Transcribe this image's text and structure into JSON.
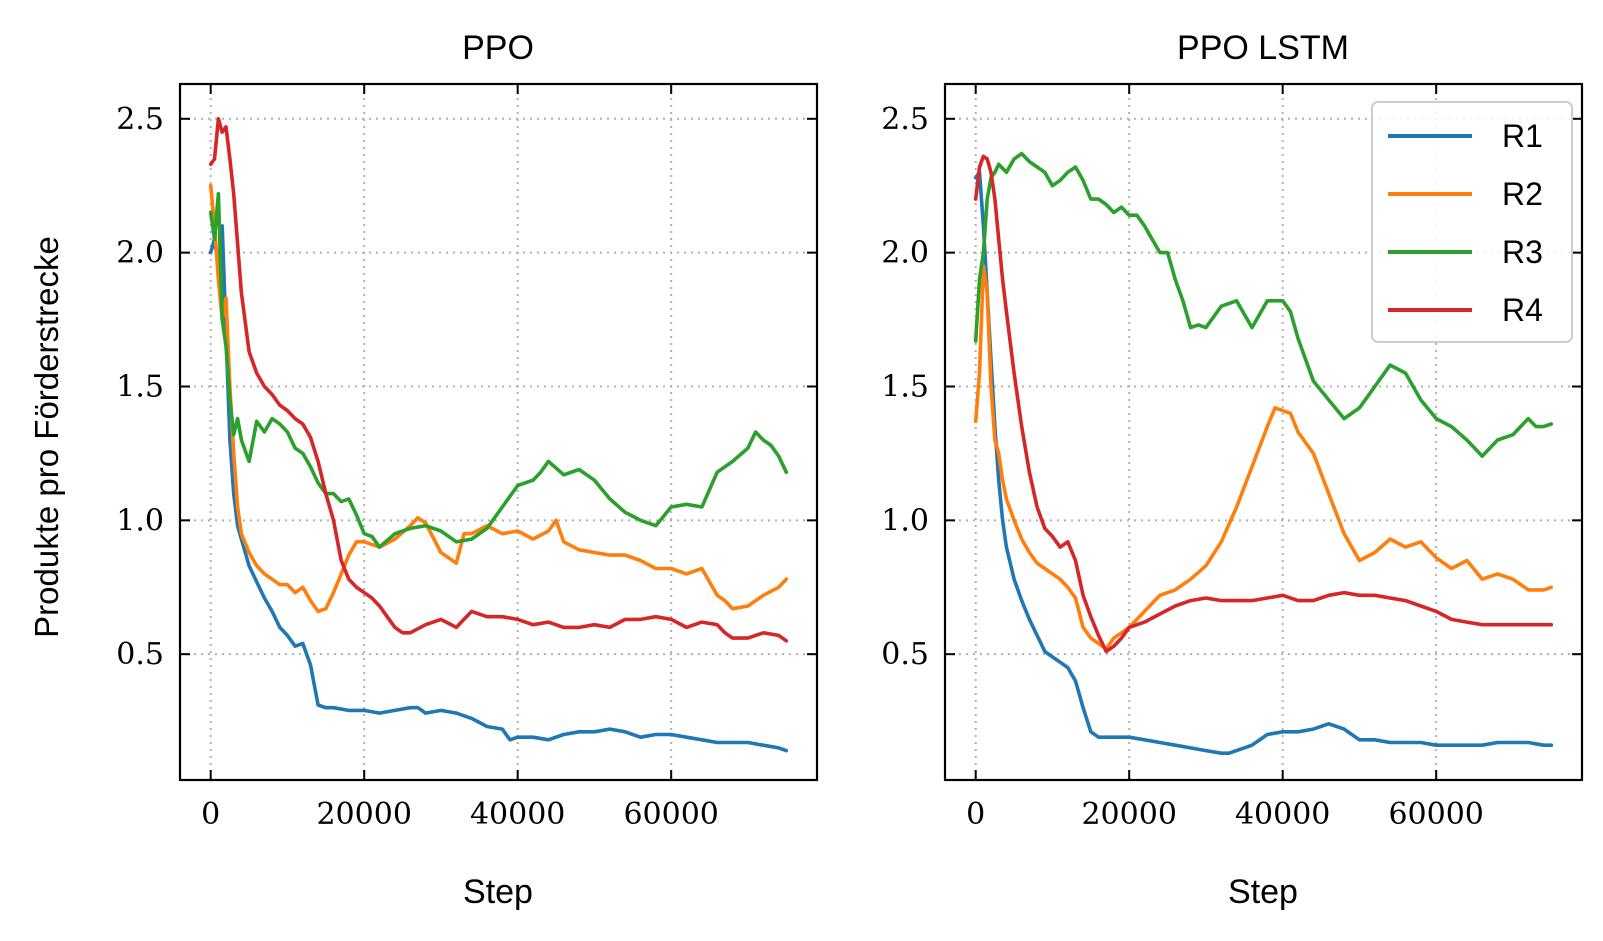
{
  "figure": {
    "ylabel": "Produkte pro Förderstrecke"
  },
  "chart_data": [
    {
      "type": "line",
      "title": "PPO",
      "xlabel": "Step",
      "ylabel": "Produkte pro Förderstrecke",
      "xlim": [
        -4000,
        79000
      ],
      "ylim": [
        0.03,
        2.63
      ],
      "xticks": [
        0,
        20000,
        40000,
        60000
      ],
      "xtick_labels": [
        "0",
        "20000",
        "40000",
        "60000"
      ],
      "yticks": [
        0.5,
        1.0,
        1.5,
        2.0,
        2.5
      ],
      "ytick_labels": [
        "0.5",
        "1.0",
        "1.5",
        "2.0",
        "2.5"
      ],
      "grid": true,
      "series": [
        {
          "name": "R1",
          "color": "#1f77b4",
          "x": [
            0,
            500,
            1000,
            1500,
            2000,
            2500,
            3000,
            3500,
            4000,
            5000,
            6000,
            7000,
            8000,
            9000,
            10000,
            11000,
            12000,
            13000,
            14000,
            15000,
            16000,
            18000,
            20000,
            22000,
            24000,
            26000,
            27000,
            28000,
            30000,
            32000,
            34000,
            36000,
            38000,
            39000,
            40000,
            42000,
            44000,
            46000,
            48000,
            50000,
            52000,
            54000,
            56000,
            58000,
            60000,
            62000,
            64000,
            66000,
            68000,
            70000,
            72000,
            74000,
            75000
          ],
          "y": [
            2.0,
            2.05,
            1.95,
            2.1,
            1.7,
            1.3,
            1.1,
            0.98,
            0.93,
            0.83,
            0.77,
            0.71,
            0.66,
            0.6,
            0.57,
            0.53,
            0.54,
            0.46,
            0.31,
            0.3,
            0.3,
            0.29,
            0.29,
            0.28,
            0.29,
            0.3,
            0.3,
            0.28,
            0.29,
            0.28,
            0.26,
            0.23,
            0.22,
            0.18,
            0.19,
            0.19,
            0.18,
            0.2,
            0.21,
            0.21,
            0.22,
            0.21,
            0.19,
            0.2,
            0.2,
            0.19,
            0.18,
            0.17,
            0.17,
            0.17,
            0.16,
            0.15,
            0.14
          ]
        },
        {
          "name": "R2",
          "color": "#ff7f0e",
          "x": [
            0,
            500,
            1000,
            1500,
            2000,
            2500,
            3000,
            3500,
            4000,
            5000,
            6000,
            7000,
            8000,
            9000,
            10000,
            11000,
            12000,
            13000,
            14000,
            15000,
            16000,
            17000,
            18000,
            19000,
            20000,
            22000,
            24000,
            26000,
            27000,
            28000,
            30000,
            32000,
            33000,
            34000,
            36000,
            38000,
            40000,
            42000,
            44000,
            45000,
            46000,
            48000,
            50000,
            52000,
            54000,
            56000,
            58000,
            60000,
            62000,
            64000,
            66000,
            67000,
            68000,
            70000,
            72000,
            74000,
            75000
          ],
          "y": [
            2.25,
            2.1,
            1.9,
            1.75,
            1.83,
            1.5,
            1.25,
            1.05,
            0.95,
            0.88,
            0.83,
            0.8,
            0.78,
            0.76,
            0.76,
            0.73,
            0.75,
            0.7,
            0.66,
            0.67,
            0.73,
            0.8,
            0.87,
            0.92,
            0.92,
            0.9,
            0.93,
            0.98,
            1.01,
            0.99,
            0.88,
            0.84,
            0.95,
            0.95,
            0.98,
            0.95,
            0.96,
            0.93,
            0.96,
            1.0,
            0.92,
            0.89,
            0.88,
            0.87,
            0.87,
            0.85,
            0.82,
            0.82,
            0.8,
            0.82,
            0.72,
            0.7,
            0.67,
            0.68,
            0.72,
            0.75,
            0.78
          ]
        },
        {
          "name": "R3",
          "color": "#2ca02c",
          "x": [
            0,
            500,
            1000,
            1500,
            2000,
            2500,
            3000,
            3500,
            4000,
            5000,
            6000,
            7000,
            8000,
            9000,
            10000,
            11000,
            12000,
            13000,
            14000,
            15000,
            16000,
            17000,
            18000,
            19000,
            20000,
            21000,
            22000,
            24000,
            26000,
            28000,
            30000,
            32000,
            34000,
            36000,
            38000,
            40000,
            42000,
            43000,
            44000,
            46000,
            48000,
            50000,
            52000,
            54000,
            56000,
            58000,
            60000,
            62000,
            64000,
            66000,
            68000,
            70000,
            71000,
            72000,
            73000,
            74000,
            75000
          ],
          "y": [
            2.15,
            2.05,
            2.22,
            1.75,
            1.65,
            1.45,
            1.32,
            1.38,
            1.3,
            1.22,
            1.37,
            1.33,
            1.38,
            1.36,
            1.33,
            1.27,
            1.25,
            1.2,
            1.14,
            1.1,
            1.1,
            1.07,
            1.08,
            1.02,
            0.95,
            0.94,
            0.9,
            0.95,
            0.97,
            0.98,
            0.96,
            0.92,
            0.93,
            0.97,
            1.05,
            1.13,
            1.15,
            1.18,
            1.22,
            1.17,
            1.19,
            1.15,
            1.08,
            1.03,
            1.0,
            0.98,
            1.05,
            1.06,
            1.05,
            1.18,
            1.22,
            1.27,
            1.33,
            1.3,
            1.28,
            1.24,
            1.18
          ]
        },
        {
          "name": "R4",
          "color": "#d62728",
          "x": [
            0,
            500,
            1000,
            1500,
            2000,
            2500,
            3000,
            4000,
            5000,
            6000,
            7000,
            8000,
            9000,
            10000,
            11000,
            12000,
            13000,
            14000,
            15000,
            16000,
            17000,
            18000,
            19000,
            20000,
            21000,
            22000,
            23000,
            24000,
            25000,
            26000,
            28000,
            30000,
            32000,
            34000,
            36000,
            38000,
            40000,
            42000,
            44000,
            46000,
            48000,
            50000,
            52000,
            54000,
            56000,
            58000,
            60000,
            62000,
            64000,
            66000,
            67000,
            68000,
            70000,
            72000,
            74000,
            75000
          ],
          "y": [
            2.33,
            2.35,
            2.5,
            2.45,
            2.47,
            2.35,
            2.22,
            1.85,
            1.63,
            1.55,
            1.5,
            1.47,
            1.43,
            1.41,
            1.38,
            1.36,
            1.31,
            1.22,
            1.1,
            1.0,
            0.85,
            0.78,
            0.75,
            0.73,
            0.71,
            0.68,
            0.64,
            0.6,
            0.58,
            0.58,
            0.61,
            0.63,
            0.6,
            0.66,
            0.64,
            0.64,
            0.63,
            0.61,
            0.62,
            0.6,
            0.6,
            0.61,
            0.6,
            0.63,
            0.63,
            0.64,
            0.63,
            0.6,
            0.62,
            0.61,
            0.58,
            0.56,
            0.56,
            0.58,
            0.57,
            0.55
          ]
        }
      ]
    },
    {
      "type": "line",
      "title": "PPO LSTM",
      "xlabel": "Step",
      "ylabel": "",
      "xlim": [
        -4000,
        79000
      ],
      "ylim": [
        0.03,
        2.63
      ],
      "xticks": [
        0,
        20000,
        40000,
        60000
      ],
      "xtick_labels": [
        "0",
        "20000",
        "40000",
        "60000"
      ],
      "yticks": [
        0.5,
        1.0,
        1.5,
        2.0,
        2.5
      ],
      "ytick_labels": [
        "0.5",
        "1.0",
        "1.5",
        "2.0",
        "2.5"
      ],
      "grid": true,
      "legend": "top-right",
      "series": [
        {
          "name": "R1",
          "color": "#1f77b4",
          "x": [
            0,
            500,
            1000,
            1500,
            2000,
            2500,
            3000,
            3500,
            4000,
            5000,
            6000,
            7000,
            8000,
            9000,
            10000,
            11000,
            12000,
            13000,
            14000,
            15000,
            16000,
            18000,
            20000,
            22000,
            24000,
            26000,
            28000,
            30000,
            32000,
            33000,
            34000,
            36000,
            38000,
            40000,
            42000,
            44000,
            46000,
            48000,
            50000,
            52000,
            54000,
            56000,
            58000,
            60000,
            62000,
            64000,
            66000,
            68000,
            70000,
            72000,
            74000,
            75000
          ],
          "y": [
            2.28,
            2.3,
            2.1,
            1.85,
            1.6,
            1.35,
            1.15,
            1.0,
            0.9,
            0.78,
            0.7,
            0.63,
            0.57,
            0.51,
            0.49,
            0.47,
            0.45,
            0.4,
            0.3,
            0.21,
            0.19,
            0.19,
            0.19,
            0.18,
            0.17,
            0.16,
            0.15,
            0.14,
            0.13,
            0.13,
            0.14,
            0.16,
            0.2,
            0.21,
            0.21,
            0.22,
            0.24,
            0.22,
            0.18,
            0.18,
            0.17,
            0.17,
            0.17,
            0.16,
            0.16,
            0.16,
            0.16,
            0.17,
            0.17,
            0.17,
            0.16,
            0.16
          ]
        },
        {
          "name": "R2",
          "color": "#ff7f0e",
          "x": [
            0,
            500,
            1000,
            1500,
            2000,
            2500,
            3000,
            3500,
            4000,
            5000,
            6000,
            7000,
            8000,
            9000,
            10000,
            11000,
            12000,
            13000,
            14000,
            15000,
            16000,
            17000,
            18000,
            19000,
            20000,
            22000,
            24000,
            26000,
            28000,
            30000,
            32000,
            34000,
            36000,
            38000,
            39000,
            40000,
            41000,
            42000,
            44000,
            46000,
            48000,
            50000,
            52000,
            54000,
            56000,
            58000,
            60000,
            62000,
            64000,
            66000,
            68000,
            70000,
            72000,
            74000,
            75000
          ],
          "y": [
            1.37,
            1.55,
            1.95,
            1.85,
            1.5,
            1.3,
            1.25,
            1.15,
            1.08,
            1.0,
            0.93,
            0.88,
            0.84,
            0.82,
            0.8,
            0.78,
            0.75,
            0.71,
            0.6,
            0.56,
            0.54,
            0.52,
            0.56,
            0.58,
            0.6,
            0.66,
            0.72,
            0.74,
            0.78,
            0.83,
            0.92,
            1.05,
            1.2,
            1.35,
            1.42,
            1.41,
            1.4,
            1.33,
            1.25,
            1.1,
            0.95,
            0.85,
            0.88,
            0.93,
            0.9,
            0.92,
            0.86,
            0.82,
            0.85,
            0.78,
            0.8,
            0.78,
            0.74,
            0.74,
            0.75
          ]
        },
        {
          "name": "R3",
          "color": "#2ca02c",
          "x": [
            0,
            500,
            1000,
            1500,
            2000,
            2500,
            3000,
            4000,
            5000,
            6000,
            7000,
            8000,
            9000,
            10000,
            11000,
            12000,
            13000,
            14000,
            15000,
            16000,
            17000,
            18000,
            19000,
            20000,
            21000,
            22000,
            23000,
            24000,
            25000,
            26000,
            27000,
            28000,
            29000,
            30000,
            32000,
            34000,
            36000,
            38000,
            40000,
            41000,
            42000,
            44000,
            46000,
            48000,
            50000,
            52000,
            54000,
            56000,
            58000,
            60000,
            62000,
            64000,
            66000,
            68000,
            70000,
            71000,
            72000,
            73000,
            74000,
            75000
          ],
          "y": [
            1.67,
            1.9,
            2.0,
            2.2,
            2.28,
            2.3,
            2.33,
            2.3,
            2.35,
            2.37,
            2.34,
            2.32,
            2.3,
            2.25,
            2.27,
            2.3,
            2.32,
            2.27,
            2.2,
            2.2,
            2.18,
            2.15,
            2.17,
            2.14,
            2.14,
            2.1,
            2.05,
            2.0,
            2.0,
            1.9,
            1.82,
            1.72,
            1.73,
            1.72,
            1.8,
            1.82,
            1.72,
            1.82,
            1.82,
            1.78,
            1.68,
            1.52,
            1.45,
            1.38,
            1.42,
            1.5,
            1.58,
            1.55,
            1.45,
            1.38,
            1.35,
            1.3,
            1.24,
            1.3,
            1.32,
            1.35,
            1.38,
            1.35,
            1.35,
            1.36
          ]
        },
        {
          "name": "R4",
          "color": "#d62728",
          "x": [
            0,
            500,
            1000,
            1500,
            2000,
            2500,
            3000,
            3500,
            4000,
            5000,
            6000,
            7000,
            8000,
            9000,
            10000,
            11000,
            12000,
            13000,
            14000,
            15000,
            16000,
            17000,
            18000,
            19000,
            20000,
            22000,
            24000,
            26000,
            28000,
            30000,
            32000,
            34000,
            36000,
            38000,
            40000,
            42000,
            44000,
            46000,
            48000,
            50000,
            52000,
            54000,
            56000,
            58000,
            60000,
            62000,
            64000,
            66000,
            68000,
            70000,
            72000,
            74000,
            75000
          ],
          "y": [
            2.2,
            2.32,
            2.36,
            2.35,
            2.3,
            2.2,
            2.05,
            1.9,
            1.78,
            1.55,
            1.35,
            1.18,
            1.05,
            0.97,
            0.94,
            0.9,
            0.92,
            0.85,
            0.72,
            0.64,
            0.57,
            0.51,
            0.53,
            0.56,
            0.6,
            0.62,
            0.65,
            0.68,
            0.7,
            0.71,
            0.7,
            0.7,
            0.7,
            0.71,
            0.72,
            0.7,
            0.7,
            0.72,
            0.73,
            0.72,
            0.72,
            0.71,
            0.7,
            0.68,
            0.66,
            0.63,
            0.62,
            0.61,
            0.61,
            0.61,
            0.61,
            0.61,
            0.61
          ]
        }
      ]
    }
  ]
}
